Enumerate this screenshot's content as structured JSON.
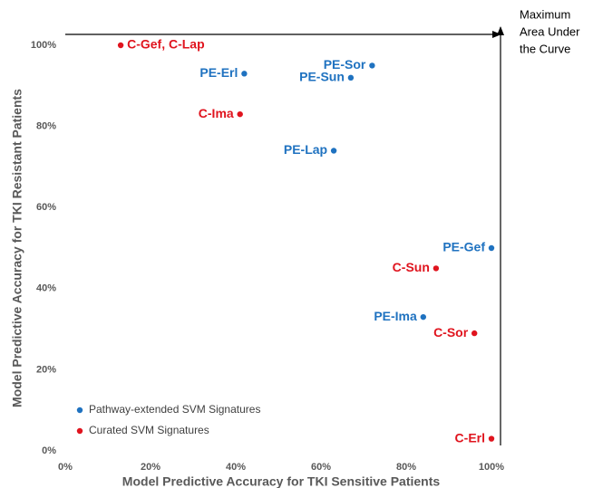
{
  "chart_data": {
    "type": "scatter",
    "x_label": "Model Predictive Accuracy for TKI Sensitive Patients",
    "y_label": "Model Predictive Accuracy for TKI Resistant Patients",
    "annotation": [
      "Maximum",
      "Area Under",
      "the Curve"
    ],
    "xlim": [
      0,
      100
    ],
    "ylim": [
      0,
      100
    ],
    "xticks": [
      {
        "value": 0,
        "label": "0%"
      },
      {
        "value": 20,
        "label": "20%"
      },
      {
        "value": 40,
        "label": "40%"
      },
      {
        "value": 60,
        "label": "60%"
      },
      {
        "value": 80,
        "label": "80%"
      },
      {
        "value": 100,
        "label": "100%"
      }
    ],
    "yticks": [
      {
        "value": 0,
        "label": "0%"
      },
      {
        "value": 20,
        "label": "20%"
      },
      {
        "value": 40,
        "label": "40%"
      },
      {
        "value": 60,
        "label": "60%"
      },
      {
        "value": 80,
        "label": "80%"
      },
      {
        "value": 100,
        "label": "100%"
      }
    ],
    "grid": false,
    "legend": "lower left",
    "series": [
      {
        "name": "Pathway-extended SVM Signatures",
        "color": "#1f72c0",
        "labels": [
          "PE-Erl",
          "PE-Sor",
          "PE-Sun",
          "PE-Lap",
          "PE-Gef",
          "PE-Ima"
        ],
        "x": [
          42,
          72,
          67,
          63,
          100,
          84
        ],
        "values": [
          93,
          95,
          92,
          74,
          50,
          33
        ]
      },
      {
        "name": "Curated SVM Signatures",
        "color": "#e0141e",
        "labels": [
          "C-Gef, C-Lap",
          "C-Ima",
          "C-Sun",
          "C-Sor",
          "C-Erl"
        ],
        "x": [
          13,
          41,
          87,
          96,
          100
        ],
        "values": [
          100,
          83,
          45,
          29,
          3
        ]
      }
    ]
  }
}
